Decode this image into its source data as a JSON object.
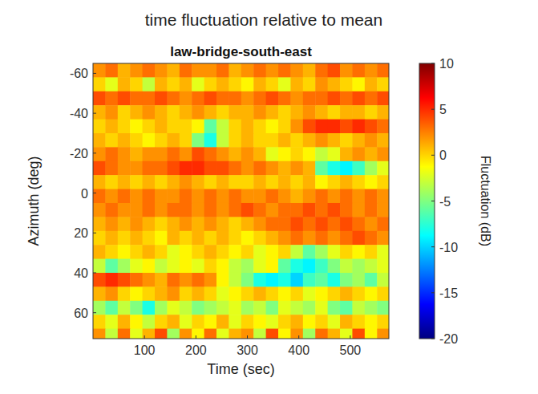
{
  "chart_data": {
    "type": "heatmap",
    "title": "time fluctuation relative to mean",
    "subtitle": "law-bridge-south-east",
    "x_label": "Time (sec)",
    "y_label": "Azimuth (deg)",
    "colorbar_label": "Fluctuation (dB)",
    "xlim": [
      0,
      575
    ],
    "ylim": [
      -65,
      73
    ],
    "xticks": [
      100,
      200,
      300,
      400,
      500
    ],
    "yticks": [
      -60,
      -40,
      -20,
      0,
      20,
      40,
      60
    ],
    "colorbar_lim": [
      -20,
      10
    ],
    "colorbar_ticks": [
      10,
      5,
      0,
      -5,
      -10,
      -15,
      -20
    ],
    "x": [
      12,
      36,
      60,
      84,
      108,
      132,
      156,
      180,
      204,
      228,
      252,
      276,
      300,
      324,
      348,
      372,
      396,
      420,
      444,
      468,
      492,
      516,
      540,
      564
    ],
    "y": [
      -61.5,
      -54.5,
      -47.5,
      -40.5,
      -33.5,
      -26.5,
      -19.5,
      -12.5,
      -5.5,
      1.5,
      8.5,
      15.5,
      22.5,
      29.5,
      36.5,
      43.5,
      50.5,
      57.5,
      64.5,
      71.5
    ],
    "z": [
      [
        2,
        3,
        1,
        2,
        3,
        2,
        1,
        3,
        2,
        2,
        3,
        1,
        2,
        3,
        2,
        3,
        2,
        1,
        3,
        4,
        2,
        3,
        2,
        3
      ],
      [
        0,
        -2,
        1,
        0,
        -3,
        1,
        0,
        1,
        -2,
        0,
        1,
        0,
        -1,
        1,
        0,
        -2,
        1,
        0,
        2,
        1,
        0,
        -1,
        1,
        0
      ],
      [
        4,
        3,
        4,
        3,
        3,
        4,
        3,
        2,
        3,
        4,
        3,
        3,
        2,
        3,
        4,
        3,
        2,
        3,
        3,
        4,
        3,
        4,
        3,
        4
      ],
      [
        1,
        2,
        0,
        1,
        2,
        1,
        0,
        1,
        2,
        1,
        0,
        1,
        1,
        2,
        1,
        0,
        1,
        2,
        1,
        0,
        1,
        1,
        0,
        1
      ],
      [
        0,
        1,
        0,
        -1,
        0,
        1,
        0,
        0,
        -1,
        -6,
        -3,
        0,
        1,
        0,
        -1,
        0,
        2,
        4,
        5,
        5,
        4,
        5,
        4,
        3
      ],
      [
        1,
        0,
        1,
        0,
        -1,
        0,
        1,
        0,
        -5,
        -8,
        -3,
        0,
        1,
        0,
        0,
        1,
        0,
        1,
        2,
        1,
        0,
        1,
        2,
        1
      ],
      [
        2,
        3,
        2,
        1,
        2,
        2,
        3,
        2,
        4,
        3,
        2,
        1,
        2,
        1,
        -2,
        -1,
        0,
        -1,
        -3,
        -2,
        1,
        2,
        1,
        2
      ],
      [
        4,
        3,
        2,
        2,
        3,
        3,
        4,
        5,
        5,
        4,
        4,
        3,
        2,
        3,
        2,
        1,
        2,
        1,
        -6,
        -8,
        -9,
        -7,
        -4,
        -2
      ],
      [
        1,
        0,
        1,
        0,
        1,
        0,
        1,
        2,
        1,
        0,
        1,
        0,
        0,
        1,
        0,
        1,
        0,
        1,
        -1,
        0,
        1,
        0,
        -1,
        0
      ],
      [
        3,
        2,
        3,
        2,
        3,
        2,
        2,
        3,
        2,
        3,
        2,
        3,
        2,
        2,
        3,
        2,
        1,
        2,
        3,
        2,
        3,
        2,
        3,
        2
      ],
      [
        2,
        3,
        2,
        2,
        3,
        2,
        3,
        3,
        2,
        3,
        2,
        3,
        4,
        3,
        2,
        3,
        3,
        4,
        3,
        4,
        3,
        2,
        3,
        2
      ],
      [
        1,
        2,
        1,
        2,
        1,
        0,
        1,
        2,
        1,
        2,
        1,
        0,
        1,
        2,
        3,
        3,
        4,
        3,
        4,
        3,
        4,
        3,
        2,
        3
      ],
      [
        0,
        1,
        0,
        1,
        0,
        -1,
        1,
        0,
        1,
        0,
        1,
        0,
        -1,
        0,
        1,
        2,
        3,
        2,
        3,
        2,
        3,
        4,
        3,
        2
      ],
      [
        1,
        0,
        -1,
        0,
        1,
        0,
        -2,
        -1,
        0,
        1,
        0,
        -1,
        0,
        -2,
        -1,
        0,
        -3,
        -6,
        -4,
        -2,
        0,
        -1,
        0,
        -2
      ],
      [
        -3,
        -6,
        -4,
        -2,
        -1,
        -3,
        -2,
        -1,
        -2,
        0,
        -1,
        -3,
        -4,
        -2,
        -1,
        -6,
        -8,
        -9,
        -7,
        -5,
        -3,
        -4,
        -3,
        -2
      ],
      [
        4,
        5,
        4,
        3,
        2,
        1,
        3,
        2,
        3,
        2,
        -1,
        -3,
        -5,
        -8,
        -9,
        -8,
        -10,
        -7,
        -6,
        -8,
        -5,
        -4,
        -6,
        -3
      ],
      [
        1,
        2,
        0,
        -1,
        0,
        1,
        2,
        0,
        1,
        0,
        -2,
        -1,
        0,
        1,
        0,
        -1,
        0,
        -2,
        -1,
        0,
        1,
        0,
        -1,
        0
      ],
      [
        -4,
        -6,
        -3,
        -5,
        -8,
        -4,
        -2,
        -3,
        -5,
        -4,
        -3,
        -2,
        -4,
        -3,
        -5,
        -2,
        -3,
        -4,
        -2,
        -5,
        -6,
        -3,
        -4,
        -5
      ],
      [
        0,
        -2,
        1,
        -1,
        -3,
        0,
        1,
        -2,
        0,
        -1,
        1,
        -2,
        0,
        -1,
        -2,
        0,
        1,
        -1,
        0,
        -2,
        1,
        0,
        -1,
        0
      ],
      [
        2,
        -3,
        3,
        -2,
        1,
        4,
        -4,
        2,
        -1,
        3,
        -2,
        1,
        2,
        -3,
        4,
        -1,
        2,
        -4,
        3,
        1,
        -2,
        4,
        -1,
        2
      ]
    ]
  }
}
